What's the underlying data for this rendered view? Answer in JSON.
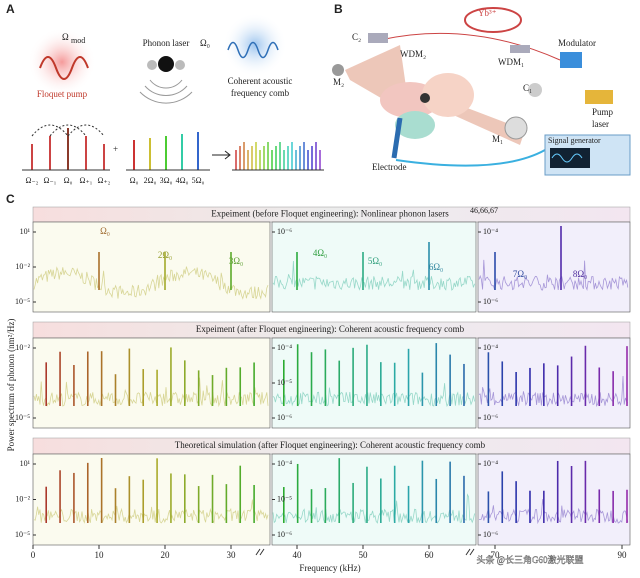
{
  "panels": {
    "a": "A",
    "b": "B",
    "c": "C"
  },
  "panel_a": {
    "floquet_pump": "Floquet pump",
    "omega": "Ω",
    "mod": "mod",
    "phonon_laser": "Phonon laser",
    "omega0": "Ω₀",
    "comb_line1": "Coherent acoustic",
    "comb_line2": "frequency comb",
    "sidebands": [
      "Ω₋₂",
      "Ω₋₁",
      "Ω₀",
      "Ω₊₁",
      "Ω₊₂"
    ],
    "plus": "+",
    "harmonics": [
      "Ω₀",
      "2Ω₀",
      "3Ω₀",
      "4Ω₀",
      "5Ω₀"
    ]
  },
  "panel_b": {
    "c2": "C₂",
    "wdm2": "WDM₂",
    "yb": "Yb³⁺",
    "wdm1": "WDM₁",
    "modulator": "Modulator",
    "m2": "M₂",
    "c1": "C₁",
    "m1": "M₁",
    "pump_line1": "Pump",
    "pump_line2": "laser",
    "signal_generator": "Signal generator",
    "electrode": "Electrode"
  },
  "panel_c": {
    "row_titles": [
      "Expeiment (before Floquet engineering): Nonlinear phonon lasers",
      "Expeiment (after Floquet engineering): Coherent acoustic frequency comb",
      "Theoretical simulation (after Floquet engineering): Coherent acoustic frequency comb"
    ],
    "refs": "46,66,67",
    "harmonic_labels": [
      "Ω₀",
      "2Ω₀",
      "3Ω₀",
      "4Ω₀",
      "5Ω₀",
      "6Ω₀",
      "7Ω₀",
      "8Ω₀"
    ],
    "y_ticks_left": [
      [
        "10¹",
        "10⁻²",
        "10⁻⁵"
      ],
      [
        "10⁻²",
        "10⁻⁵"
      ],
      [
        "10¹",
        "10⁻²",
        "10⁻⁵"
      ]
    ],
    "y_ticks_mid": [
      [
        "10⁻⁶"
      ],
      [
        "10⁻⁴",
        "10⁻⁵",
        "10⁻⁶"
      ],
      [
        "10⁻⁴",
        "10⁻⁵",
        "10⁻⁶"
      ]
    ],
    "y_ticks_right": [
      [
        "10⁻⁴",
        "10⁻⁶"
      ],
      [
        "10⁻⁴",
        "10⁻⁶"
      ],
      [
        "10⁻⁴",
        "10⁻⁶"
      ]
    ],
    "y_axis_label": "Power spectrum of phonon (nm²/Hz)",
    "x_axis_label": "Frequency (kHz)",
    "xticks": [
      "0",
      "10",
      "20",
      "30",
      "40",
      "50",
      "60",
      "70",
      "90"
    ]
  },
  "watermark": "头条 @长三角G60激光联盟"
}
